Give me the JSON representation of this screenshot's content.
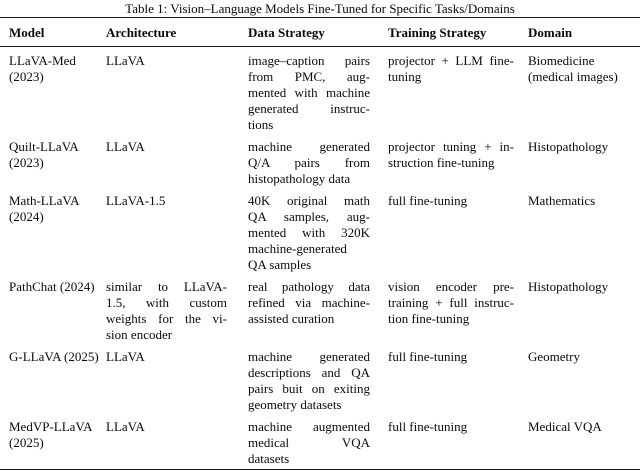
{
  "title": "Table 1: Vision–Language Models Fine-Tuned for Specific Tasks/Domains",
  "table": {
    "columns": [
      {
        "key": "model",
        "label": "Model",
        "justify": false
      },
      {
        "key": "architecture",
        "label": "Architecture",
        "justify": true
      },
      {
        "key": "data_strategy",
        "label": "Data Strategy",
        "justify": true
      },
      {
        "key": "training_strategy",
        "label": "Training Strategy",
        "justify": true
      },
      {
        "key": "domain",
        "label": "Domain",
        "justify": false
      }
    ],
    "rows": [
      {
        "model": [
          "LLaVA-Med",
          "(2023)"
        ],
        "architecture": [
          "LLaVA"
        ],
        "data_strategy": [
          "image–caption pairs",
          "from PMC, aug-",
          "mented with machine",
          "generated instruc-",
          "tions"
        ],
        "training_strategy": [
          "projector + LLM fine-",
          "tuning"
        ],
        "domain": [
          "Biomedicine",
          "(medical images)"
        ]
      },
      {
        "model": [
          "Quilt-LLaVA",
          "(2023)"
        ],
        "architecture": [
          "LLaVA"
        ],
        "data_strategy": [
          "machine generated",
          "Q/A pairs from",
          "histopathology data"
        ],
        "training_strategy": [
          "projector tuning + in-",
          "struction fine-tuning"
        ],
        "domain": [
          "Histopathology"
        ]
      },
      {
        "model": [
          "Math-LLaVA",
          "(2024)"
        ],
        "architecture": [
          "LLaVA-1.5"
        ],
        "data_strategy": [
          "40K original math",
          "QA samples, aug-",
          "mented with 320K",
          "machine-generated",
          "QA samples"
        ],
        "training_strategy": [
          "full fine-tuning"
        ],
        "domain": [
          "Mathematics"
        ]
      },
      {
        "model": [
          "PathChat (2024)"
        ],
        "architecture": [
          "similar to LLaVA-",
          "1.5, with custom",
          "weights for the vi-",
          "sion encoder"
        ],
        "data_strategy": [
          "real pathology data",
          "refined via machine-",
          "assisted curation"
        ],
        "training_strategy": [
          "vision encoder pre-",
          "training + full instruc-",
          "tion fine-tuning"
        ],
        "domain": [
          "Histopathology"
        ]
      },
      {
        "model": [
          "G-LLaVA (2025)"
        ],
        "architecture": [
          "LLaVA"
        ],
        "data_strategy": [
          "machine generated",
          "descriptions and QA",
          "pairs buit on exiting",
          "geometry datasets"
        ],
        "training_strategy": [
          "full fine-tuning"
        ],
        "domain": [
          "Geometry"
        ]
      },
      {
        "model": [
          "MedVP-LLaVA",
          "(2025)"
        ],
        "architecture": [
          "LLaVA"
        ],
        "data_strategy": [
          "machine augmented",
          "medical VQA",
          "datasets"
        ],
        "training_strategy": [
          "full fine-tuning"
        ],
        "domain": [
          "Medical VQA"
        ]
      }
    ]
  },
  "colors": {
    "text": "#0a0a0a",
    "rule": "#1a1a1a",
    "background": "#ffffff"
  }
}
